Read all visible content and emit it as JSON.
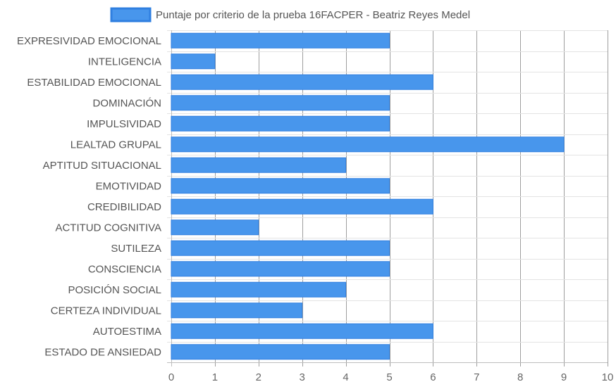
{
  "chart_data": {
    "type": "bar",
    "orientation": "horizontal",
    "title": "",
    "xlabel": "",
    "ylabel": "",
    "xlim": [
      0,
      10
    ],
    "x_ticks": [
      0,
      1,
      2,
      3,
      4,
      5,
      6,
      7,
      8,
      9,
      10
    ],
    "grid": true,
    "legend_position": "top",
    "categories": [
      "EXPRESIVIDAD EMOCIONAL",
      "INTELIGENCIA",
      "ESTABILIDAD EMOCIONAL",
      "DOMINACIÓN",
      "IMPULSIVIDAD",
      "LEALTAD GRUPAL",
      "APTITUD SITUACIONAL",
      "EMOTIVIDAD",
      "CREDIBILIDAD",
      "ACTITUD COGNITIVA",
      "SUTILEZA",
      "CONSCIENCIA",
      "POSICIÓN SOCIAL",
      "CERTEZA INDIVIDUAL",
      "AUTOESTIMA",
      "ESTADO DE ANSIEDAD"
    ],
    "series": [
      {
        "name": "Puntaje por criterio de la prueba 16FACPER - Beatriz Reyes Medel",
        "color": "#4896ec",
        "border_color": "#2f7fe0",
        "values": [
          5,
          1,
          6,
          5,
          5,
          9,
          4,
          5,
          6,
          2,
          5,
          5,
          4,
          3,
          6,
          5
        ]
      }
    ]
  }
}
